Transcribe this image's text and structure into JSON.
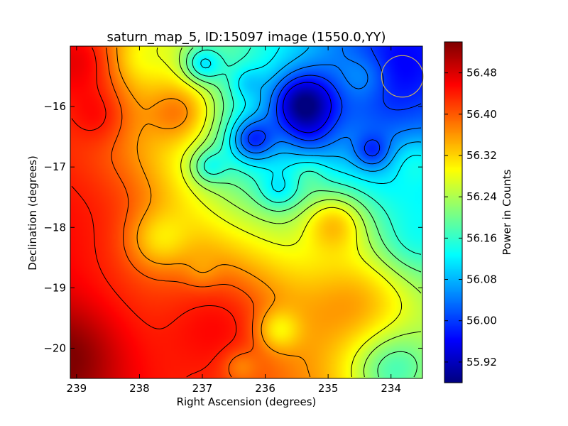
{
  "chart_data": {
    "type": "heatmap",
    "title": "saturn_map_5, ID:15097 image (1550.0,YY)",
    "xlabel": "Right Ascension (degrees)",
    "ylabel": "Declination (degrees)",
    "xlim": [
      239.1,
      233.5
    ],
    "ylim": [
      -20.5,
      -15.0
    ],
    "x_ticks": [
      {
        "value": 239,
        "label": "239"
      },
      {
        "value": 238,
        "label": "238"
      },
      {
        "value": 237,
        "label": "237"
      },
      {
        "value": 236,
        "label": "236"
      },
      {
        "value": 235,
        "label": "235"
      },
      {
        "value": 234,
        "label": "234"
      }
    ],
    "y_ticks": [
      {
        "value": -16,
        "label": "−16"
      },
      {
        "value": -17,
        "label": "−17"
      },
      {
        "value": -18,
        "label": "−18"
      },
      {
        "value": -19,
        "label": "−19"
      },
      {
        "value": -20,
        "label": "−20"
      }
    ],
    "colorbar": {
      "label": "Power in Counts",
      "vmin": 55.88,
      "vmax": 56.54,
      "ticks": [
        {
          "value": 55.92,
          "label": "55.92"
        },
        {
          "value": 56.0,
          "label": "56.00"
        },
        {
          "value": 56.08,
          "label": "56.08"
        },
        {
          "value": 56.16,
          "label": "56.16"
        },
        {
          "value": 56.24,
          "label": "56.24"
        },
        {
          "value": 56.32,
          "label": "56.32"
        },
        {
          "value": 56.4,
          "label": "56.40"
        },
        {
          "value": 56.48,
          "label": "56.48"
        }
      ]
    },
    "background": {
      "corners": {
        "nw": 56.38,
        "ne": 56.02,
        "sw": 56.48,
        "se": 56.3
      },
      "base": 56.3
    },
    "features": [
      {
        "ra": 236.9,
        "dec": -15.3,
        "sigma": 1.3,
        "amp": 0.02
      },
      {
        "ra": 234.1,
        "dec": -15.4,
        "sigma": 0.5,
        "amp": -0.07
      },
      {
        "ra": 235.0,
        "dec": -15.7,
        "sigma": 1.2,
        "amp": -0.05
      },
      {
        "ra": 234.2,
        "dec": -16.5,
        "sigma": 0.8,
        "amp": -0.05
      },
      {
        "ra": 236.8,
        "dec": -16.5,
        "sigma": 1.0,
        "amp": -0.07
      },
      {
        "ra": 236.0,
        "dec": -16.8,
        "sigma": 0.9,
        "amp": -0.05
      },
      {
        "ra": 238.9,
        "dec": -15.2,
        "sigma": 0.5,
        "amp": 0.09
      },
      {
        "ra": 238.1,
        "dec": -15.2,
        "sigma": 0.3,
        "amp": -0.04
      },
      {
        "ra": 237.0,
        "dec": -15.3,
        "sigma": 0.22,
        "amp": -0.12
      },
      {
        "ra": 236.3,
        "dec": -15.6,
        "sigma": 0.2,
        "amp": -0.05
      },
      {
        "ra": 235.4,
        "dec": -15.95,
        "sigma": 0.35,
        "amp": -0.2
      },
      {
        "ra": 234.4,
        "dec": -15.5,
        "sigma": 0.3,
        "amp": 0.07
      },
      {
        "ra": 235.3,
        "dec": -16.5,
        "sigma": 0.3,
        "amp": -0.05
      },
      {
        "ra": 234.3,
        "dec": -16.75,
        "sigma": 0.2,
        "amp": -0.08
      },
      {
        "ra": 236.2,
        "dec": -16.55,
        "sigma": 0.25,
        "amp": -0.14
      },
      {
        "ra": 233.6,
        "dec": -16.9,
        "sigma": 0.3,
        "amp": 0.06
      },
      {
        "ra": 237.3,
        "dec": -16.1,
        "sigma": 0.4,
        "amp": 0.13
      },
      {
        "ra": 238.6,
        "dec": -16.15,
        "sigma": 0.35,
        "amp": 0.06
      },
      {
        "ra": 236.9,
        "dec": -17.0,
        "sigma": 0.2,
        "amp": -0.08
      },
      {
        "ra": 235.3,
        "dec": -17.1,
        "sigma": 0.2,
        "amp": 0.04
      },
      {
        "ra": 234.9,
        "dec": -17.9,
        "sigma": 0.35,
        "amp": 0.12
      },
      {
        "ra": 235.8,
        "dec": -17.4,
        "sigma": 0.22,
        "amp": -0.06
      },
      {
        "ra": 237.7,
        "dec": -18.2,
        "sigma": 0.35,
        "amp": -0.08
      },
      {
        "ra": 237.0,
        "dec": -18.75,
        "sigma": 0.2,
        "amp": -0.03
      },
      {
        "ra": 233.7,
        "dec": -18.3,
        "sigma": 0.4,
        "amp": -0.05
      },
      {
        "ra": 235.8,
        "dec": -19.7,
        "sigma": 0.25,
        "amp": -0.09
      },
      {
        "ra": 234.0,
        "dec": -20.4,
        "sigma": 0.5,
        "amp": -0.14
      },
      {
        "ra": 236.4,
        "dec": -20.3,
        "sigma": 0.2,
        "amp": -0.05
      },
      {
        "ra": 236.6,
        "dec": -19.5,
        "sigma": 0.7,
        "amp": 0.08
      },
      {
        "ra": 234.5,
        "dec": -19.2,
        "sigma": 0.6,
        "amp": 0.08
      },
      {
        "ra": 239.1,
        "dec": -20.1,
        "sigma": 0.6,
        "amp": 0.07
      },
      {
        "ra": 238.2,
        "dec": -17.5,
        "sigma": 0.8,
        "amp": 0.04
      }
    ],
    "contour_levels": [
      55.96,
      56.0,
      56.04,
      56.08,
      56.12,
      56.16,
      56.2,
      56.24,
      56.28,
      56.36,
      56.4,
      56.44
    ],
    "marker": {
      "type": "circle",
      "ra": 233.82,
      "dec": -15.5,
      "radius_deg": 0.33,
      "color": "#c8b060"
    }
  }
}
